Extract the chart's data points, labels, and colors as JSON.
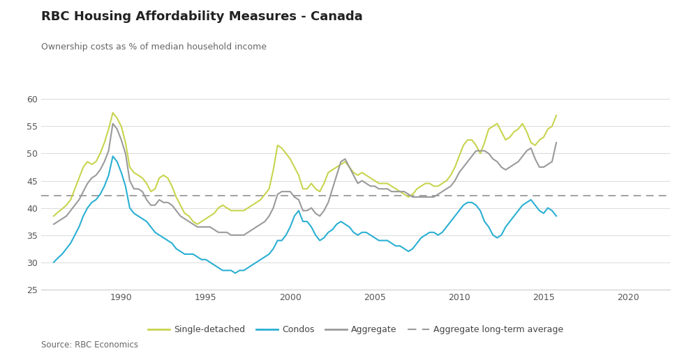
{
  "title": "RBC Housing Affordability Measures - Canada",
  "subtitle": "Ownership costs as % of median household income",
  "source": "Source: RBC Economics",
  "ylim": [
    25,
    62
  ],
  "yticks": [
    25,
    30,
    35,
    40,
    45,
    50,
    55,
    60
  ],
  "xlim": [
    1985.25,
    2022.5
  ],
  "xticks": [
    1990,
    1995,
    2000,
    2005,
    2010,
    2015,
    2020
  ],
  "avg_line": 42.2,
  "colors": {
    "single_detached": "#c8d44e",
    "condos": "#2aafd3",
    "aggregate": "#9a9a9a",
    "avg": "#9a9a9a",
    "background": "#ffffff",
    "grid": "#dddddd"
  },
  "single_detached": [
    38.5,
    39.2,
    39.8,
    40.5,
    41.5,
    43.5,
    45.5,
    47.5,
    48.5,
    48.0,
    48.5,
    50.0,
    52.0,
    54.5,
    57.5,
    56.5,
    55.0,
    52.0,
    47.5,
    46.5,
    46.0,
    45.5,
    44.5,
    43.0,
    43.5,
    45.5,
    46.0,
    45.5,
    44.0,
    42.0,
    40.5,
    39.0,
    38.5,
    37.5,
    37.0,
    37.5,
    38.0,
    38.5,
    39.0,
    40.0,
    40.5,
    40.0,
    39.5,
    39.5,
    39.5,
    39.5,
    40.0,
    40.5,
    41.0,
    41.5,
    42.5,
    43.5,
    47.0,
    51.5,
    51.0,
    50.0,
    49.0,
    47.5,
    46.0,
    43.5,
    43.5,
    44.5,
    43.5,
    43.0,
    44.5,
    46.5,
    47.0,
    47.5,
    48.0,
    48.5,
    47.5,
    46.5,
    46.0,
    46.5,
    46.0,
    45.5,
    45.0,
    44.5,
    44.5,
    44.5,
    44.0,
    43.5,
    43.0,
    42.5,
    42.0,
    42.5,
    43.5,
    44.0,
    44.5,
    44.5,
    44.0,
    44.0,
    44.5,
    45.0,
    46.0,
    47.5,
    49.5,
    51.5,
    52.5,
    52.5,
    51.5,
    50.0,
    52.0,
    54.5,
    55.0,
    55.5,
    54.0,
    52.5,
    53.0,
    54.0,
    54.5,
    55.5,
    54.0,
    52.0,
    51.5,
    52.5,
    53.0,
    54.5,
    55.0,
    57.0
  ],
  "condos": [
    30.0,
    30.8,
    31.5,
    32.5,
    33.5,
    35.0,
    36.5,
    38.5,
    40.0,
    41.0,
    41.5,
    42.5,
    44.0,
    46.0,
    49.5,
    48.5,
    46.5,
    44.0,
    40.0,
    39.0,
    38.5,
    38.0,
    37.5,
    36.5,
    35.5,
    35.0,
    34.5,
    34.0,
    33.5,
    32.5,
    32.0,
    31.5,
    31.5,
    31.5,
    31.0,
    30.5,
    30.5,
    30.0,
    29.5,
    29.0,
    28.5,
    28.5,
    28.5,
    28.0,
    28.5,
    28.5,
    29.0,
    29.5,
    30.0,
    30.5,
    31.0,
    31.5,
    32.5,
    34.0,
    34.0,
    35.0,
    36.5,
    38.5,
    39.5,
    37.5,
    37.5,
    36.5,
    35.0,
    34.0,
    34.5,
    35.5,
    36.0,
    37.0,
    37.5,
    37.0,
    36.5,
    35.5,
    35.0,
    35.5,
    35.5,
    35.0,
    34.5,
    34.0,
    34.0,
    34.0,
    33.5,
    33.0,
    33.0,
    32.5,
    32.0,
    32.5,
    33.5,
    34.5,
    35.0,
    35.5,
    35.5,
    35.0,
    35.5,
    36.5,
    37.5,
    38.5,
    39.5,
    40.5,
    41.0,
    41.0,
    40.5,
    39.5,
    37.5,
    36.5,
    35.0,
    34.5,
    35.0,
    36.5,
    37.5,
    38.5,
    39.5,
    40.5,
    41.0,
    41.5,
    40.5,
    39.5,
    39.0,
    40.0,
    39.5,
    38.5
  ],
  "aggregate": [
    37.0,
    37.5,
    38.0,
    38.5,
    39.5,
    40.5,
    41.5,
    43.0,
    44.5,
    45.5,
    46.0,
    47.0,
    48.5,
    50.5,
    55.5,
    54.5,
    52.5,
    50.0,
    45.0,
    43.5,
    43.5,
    43.0,
    41.5,
    40.5,
    40.5,
    41.5,
    41.0,
    41.0,
    40.5,
    39.5,
    38.5,
    38.0,
    37.5,
    37.0,
    36.5,
    36.5,
    36.5,
    36.5,
    36.0,
    35.5,
    35.5,
    35.5,
    35.0,
    35.0,
    35.0,
    35.0,
    35.5,
    36.0,
    36.5,
    37.0,
    37.5,
    38.5,
    40.0,
    42.5,
    43.0,
    43.0,
    43.0,
    42.0,
    41.5,
    39.5,
    39.5,
    40.0,
    39.0,
    38.5,
    39.5,
    41.0,
    43.5,
    46.0,
    48.5,
    49.0,
    47.5,
    46.0,
    44.5,
    45.0,
    44.5,
    44.0,
    44.0,
    43.5,
    43.5,
    43.5,
    43.0,
    43.0,
    43.0,
    43.0,
    42.5,
    42.0,
    42.0,
    42.0,
    42.0,
    42.0,
    42.0,
    42.5,
    43.0,
    43.5,
    44.0,
    45.0,
    46.5,
    47.5,
    48.5,
    49.5,
    50.5,
    50.5,
    50.5,
    50.0,
    49.0,
    48.5,
    47.5,
    47.0,
    47.5,
    48.0,
    48.5,
    49.5,
    50.5,
    51.0,
    49.0,
    47.5,
    47.5,
    48.0,
    48.5,
    52.0
  ]
}
